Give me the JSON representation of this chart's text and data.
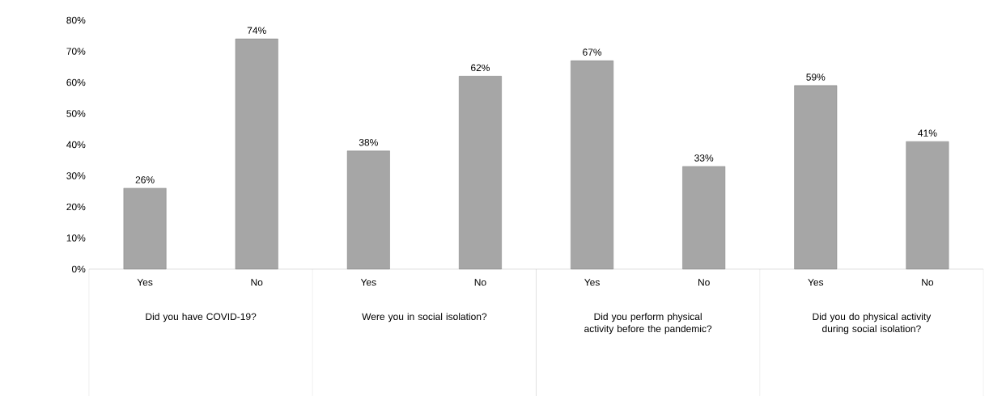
{
  "chart_data": {
    "type": "bar",
    "categories": [
      "Yes",
      "No",
      "Yes",
      "No",
      "Yes",
      "No",
      "Yes",
      "No"
    ],
    "values": [
      26,
      74,
      38,
      62,
      67,
      33,
      59,
      41
    ],
    "value_labels": [
      "26%",
      "74%",
      "38%",
      "62%",
      "67%",
      "33%",
      "59%",
      "41%"
    ],
    "color": "#a6a6a6",
    "ylim": [
      0,
      80
    ],
    "yticks": [
      {
        "value": 0,
        "label": "0%"
      },
      {
        "value": 10,
        "label": "10%"
      },
      {
        "value": 20,
        "label": "20%"
      },
      {
        "value": 30,
        "label": "30%"
      },
      {
        "value": 40,
        "label": "40%"
      },
      {
        "value": 50,
        "label": "50%"
      },
      {
        "value": 60,
        "label": "60%"
      },
      {
        "value": 70,
        "label": "70%"
      },
      {
        "value": 80,
        "label": "80%"
      }
    ],
    "annotations": [
      "Did you have COVID-19?",
      "Were you in social isolation?",
      "Did you perform physical activity before the pandemic?",
      "Did you do physical activity during social isolation?"
    ],
    "grid": false
  }
}
